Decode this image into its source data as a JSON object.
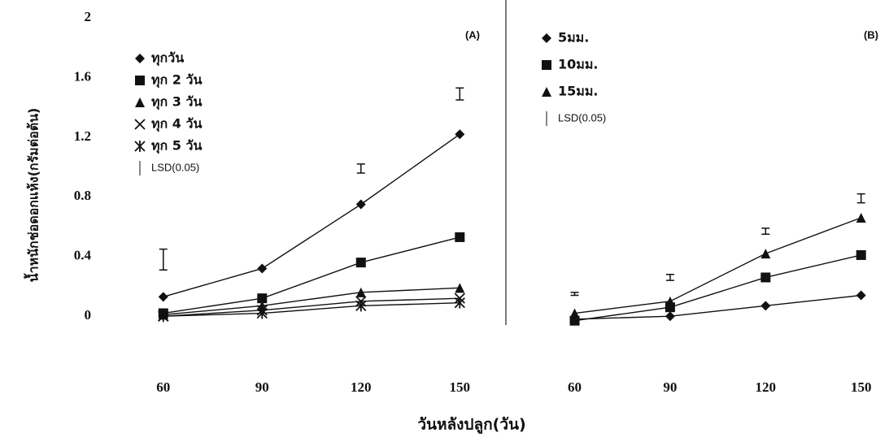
{
  "chart_data": [
    {
      "type": "line",
      "panel_label": "(A)",
      "y_label": "น้ำหนักช่อดอกแห้ง(กรัมต่อต้น)",
      "x_label": "วันหลังปลูก(วัน)",
      "x": [
        60,
        90,
        120,
        150
      ],
      "xlim": [
        45,
        164
      ],
      "xticks": [
        60,
        90,
        120,
        150
      ],
      "ylim": [
        -0.5,
        2
      ],
      "yticks": [
        0,
        0.4,
        0.8,
        1.2,
        1.6,
        2
      ],
      "series": [
        {
          "name": "ทุกวัน",
          "color": "#111111",
          "marker": "diamond",
          "values": [
            0.13,
            0.32,
            0.75,
            1.22
          ]
        },
        {
          "name": "ทุก 2 วัน",
          "color": "#111111",
          "marker": "square",
          "values": [
            0.02,
            0.12,
            0.36,
            0.53
          ]
        },
        {
          "name": "ทุก 3 วัน",
          "color": "#111111",
          "marker": "triangle",
          "values": [
            0.01,
            0.07,
            0.16,
            0.19
          ]
        },
        {
          "name": "ทุก 4 วัน",
          "color": "#111111",
          "marker": "x",
          "values": [
            0.0,
            0.04,
            0.1,
            0.12
          ]
        },
        {
          "name": "ทุก 5 วัน",
          "color": "#111111",
          "marker": "asterisk",
          "values": [
            0.0,
            0.02,
            0.07,
            0.09
          ]
        }
      ],
      "lsd": {
        "name": "LSD(0.05)",
        "values": [
          0.38,
          null,
          0.99,
          1.49
        ],
        "errors": [
          0.07,
          null,
          0.03,
          0.04
        ]
      }
    },
    {
      "type": "line",
      "panel_label": "(B)",
      "x": [
        60,
        90,
        120,
        150
      ],
      "xlim": [
        43,
        158
      ],
      "xticks": [
        60,
        90,
        120,
        150
      ],
      "ylim": [
        -0.5,
        2
      ],
      "series": [
        {
          "name": "5มม.",
          "color": "#111111",
          "marker": "diamond",
          "values": [
            -0.02,
            0.0,
            0.07,
            0.14
          ]
        },
        {
          "name": "10มม.",
          "color": "#111111",
          "marker": "square",
          "values": [
            -0.03,
            0.06,
            0.26,
            0.41
          ]
        },
        {
          "name": "15มม.",
          "color": "#111111",
          "marker": "triangle",
          "values": [
            0.02,
            0.1,
            0.42,
            0.66
          ]
        }
      ],
      "lsd": {
        "name": "LSD(0.05)",
        "values": [
          0.15,
          0.26,
          0.57,
          0.79
        ],
        "errors": [
          0.01,
          0.02,
          0.02,
          0.03
        ]
      }
    }
  ]
}
